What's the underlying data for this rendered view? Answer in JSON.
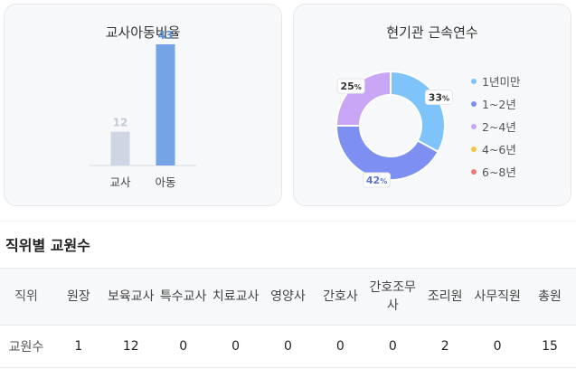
{
  "ratio_card": {
    "title": "교사아동비율"
  },
  "tenure_card": {
    "title": "현기관 근속연수"
  },
  "staff_section": {
    "title": "직위별 교원수"
  },
  "staff_table": {
    "headers": [
      "직위",
      "원장",
      "보육교사",
      "특수교사",
      "치료교사",
      "영양사",
      "간호사",
      "간호조무사",
      "조리원",
      "사무직원",
      "총원"
    ],
    "row_label": "교원수",
    "values": [
      "1",
      "12",
      "0",
      "0",
      "0",
      "0",
      "0",
      "2",
      "0",
      "15"
    ]
  },
  "chart_data": [
    {
      "type": "bar",
      "categories": [
        "교사",
        "아동"
      ],
      "values": [
        12,
        43
      ],
      "title": "교사아동비율",
      "colors": [
        "#cfd5e2",
        "#74a3e6"
      ]
    },
    {
      "type": "pie",
      "title": "현기관 근속연수",
      "labels": [
        "1년미만",
        "1~2년",
        "2~4년",
        "4~6년",
        "6~8년"
      ],
      "values": [
        33,
        42,
        25,
        0,
        0
      ],
      "colors": [
        "#7ec4fa",
        "#7d8ff0",
        "#c9a5f5",
        "#f6c445",
        "#f27a78"
      ],
      "donut": true,
      "value_suffix": "%"
    }
  ]
}
